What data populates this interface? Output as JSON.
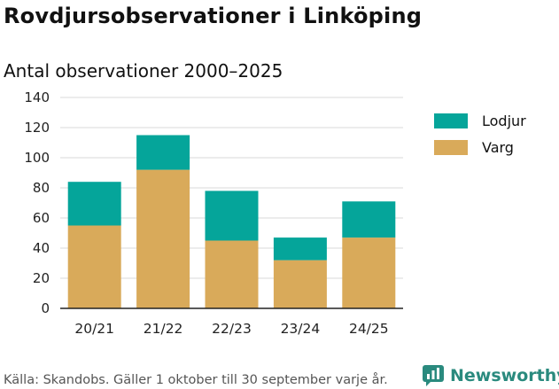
{
  "header": {
    "title": "Rovdjursobservationer i Linköping",
    "subtitle": "Antal observationer 2000–2025"
  },
  "footer": {
    "source": "Källa: Skandobs. Gäller 1 oktober till 30 september varje år.",
    "brand": "Newsworthy",
    "brand_icon": "bar-chart-speech-bubble-icon",
    "brand_color": "#2a8a7e"
  },
  "chart_data": {
    "type": "bar",
    "stacked": true,
    "title": "Rovdjursobservationer i Linköping",
    "subtitle": "Antal observationer 2000–2025",
    "xlabel": "",
    "ylabel": "",
    "categories": [
      "20/21",
      "21/22",
      "22/23",
      "23/24",
      "24/25"
    ],
    "series": [
      {
        "name": "Varg",
        "color": "#d9aa5a",
        "values": [
          55,
          92,
          45,
          32,
          47
        ]
      },
      {
        "name": "Lodjur",
        "color": "#05a59a",
        "values": [
          29,
          23,
          33,
          15,
          24
        ]
      }
    ],
    "legend_order": [
      "Lodjur",
      "Varg"
    ],
    "legend_position": "right",
    "ylim": [
      0,
      140
    ],
    "yticks": [
      0,
      20,
      40,
      60,
      80,
      100,
      120,
      140
    ],
    "grid": true
  }
}
